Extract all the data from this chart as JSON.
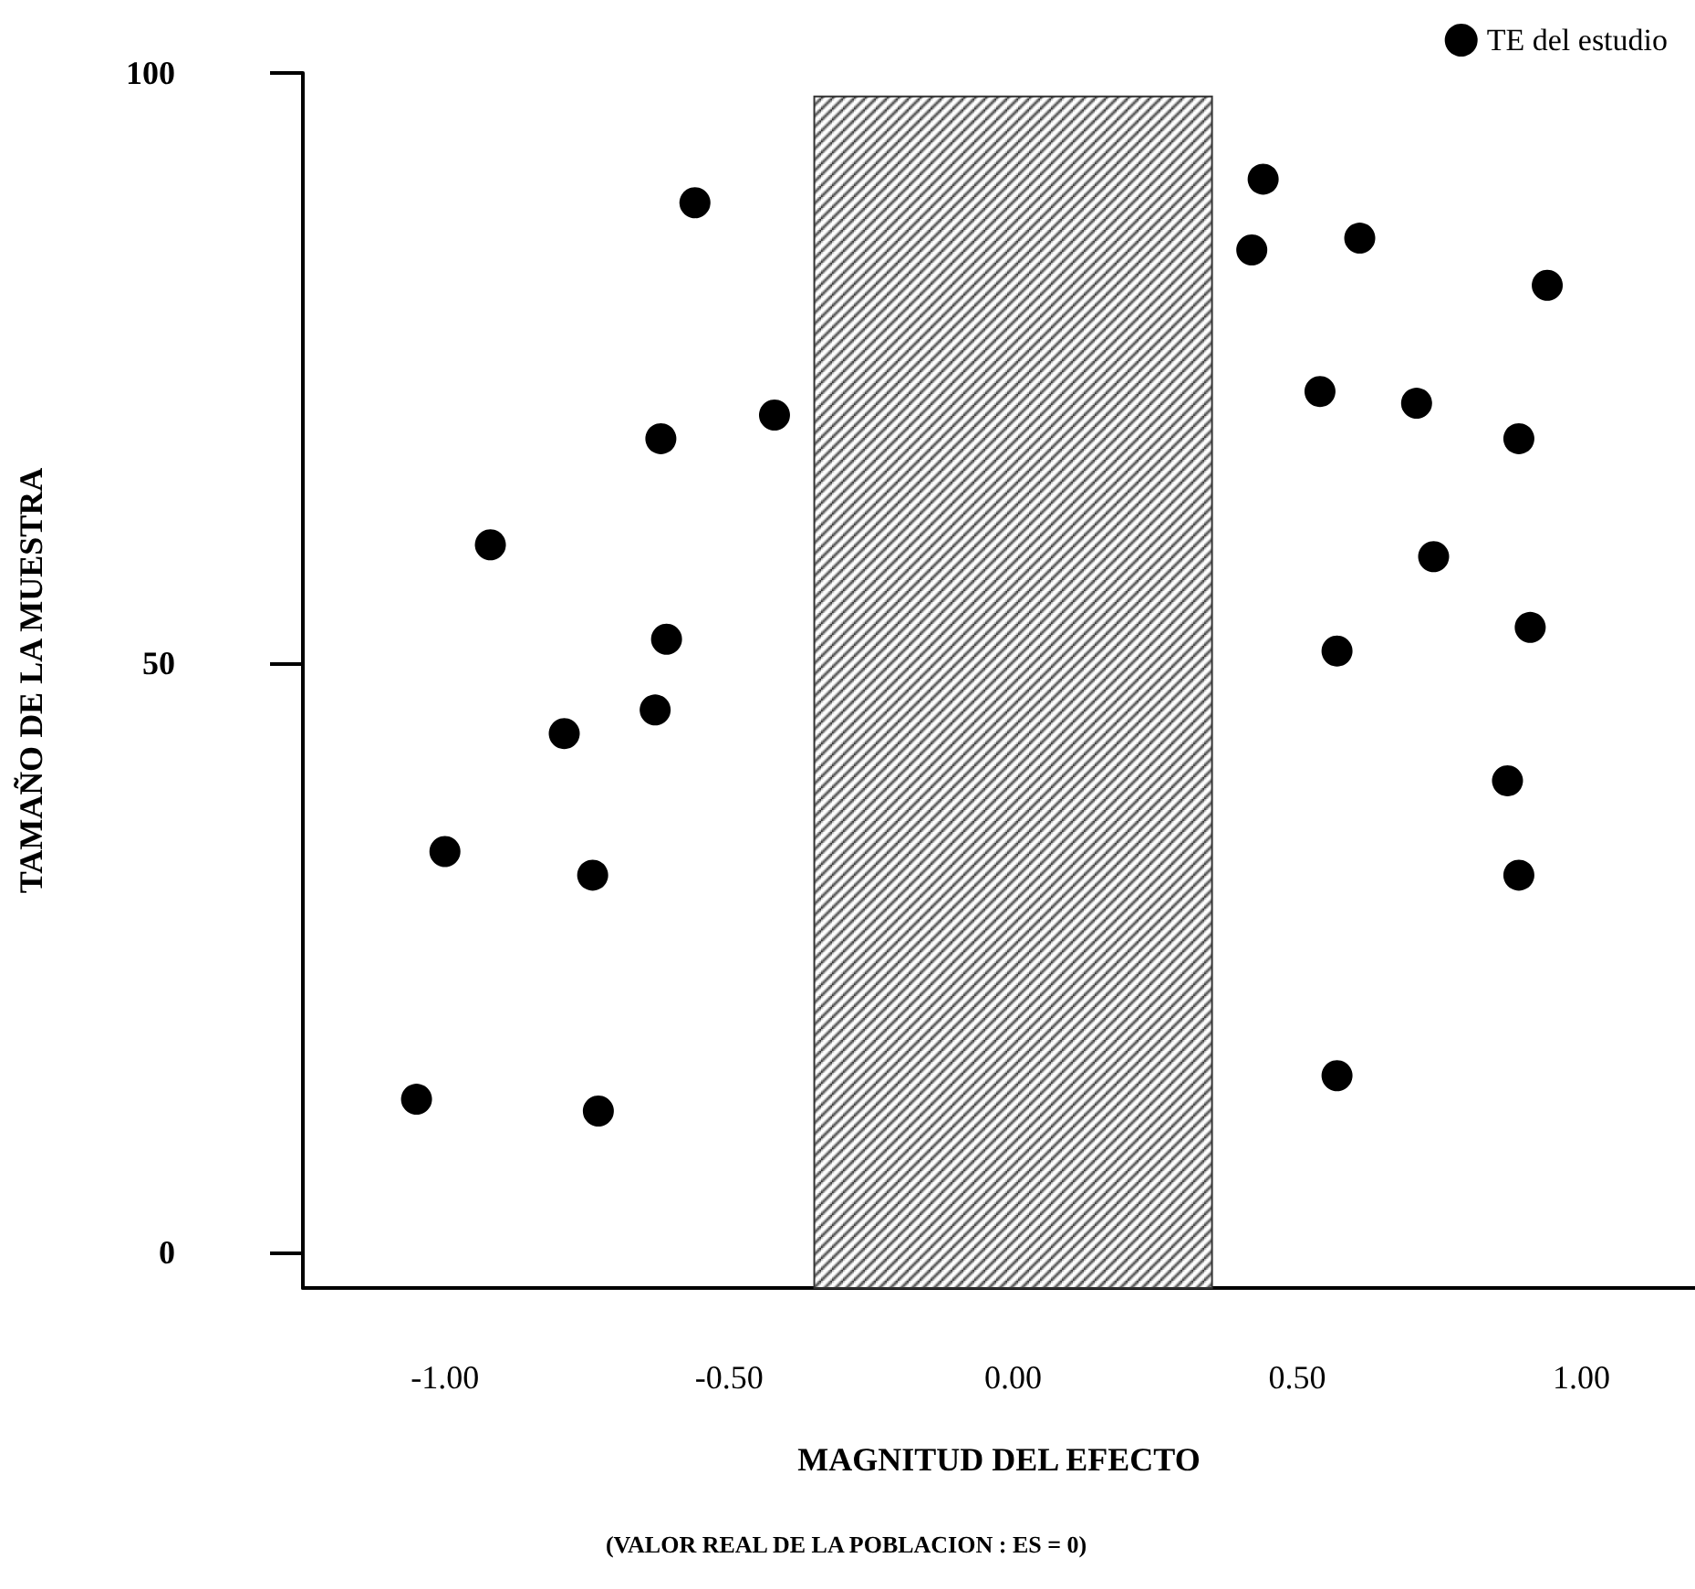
{
  "chart_data": {
    "type": "scatter",
    "xlabel": "MAGNITUD DEL EFECTO",
    "ylabel": "TAMAÑO DE LA MUESTRA",
    "annotations": [
      "(VALOR REAL DE LA POBLACION : ES = 0)"
    ],
    "series": [
      {
        "name": "TE del estudio",
        "color": "#000000",
        "x": [
          -0.56,
          -0.42,
          -0.62,
          -0.92,
          -0.61,
          -0.63,
          -0.79,
          -1.0,
          -0.74,
          -1.05,
          -0.73,
          0.44,
          0.42,
          0.61,
          0.94,
          0.54,
          0.71,
          0.89,
          0.74,
          0.91,
          0.57,
          0.87,
          0.89,
          0.57
        ],
        "values": [
          89,
          71,
          69,
          60,
          52,
          46,
          44,
          34,
          32,
          13,
          12,
          91,
          85,
          86,
          82,
          73,
          72,
          69,
          59,
          53,
          51,
          40,
          32,
          15
        ]
      }
    ],
    "xlim": [
      -1.25,
      1.2
    ],
    "xticks": [
      {
        "value": -1,
        "label": "-1.00"
      },
      {
        "value": -0.5,
        "label": "-0.50"
      },
      {
        "value": 0,
        "label": "0.00"
      },
      {
        "value": 0.5,
        "label": "0.50"
      },
      {
        "value": 1,
        "label": "1.00"
      }
    ],
    "ylim": [
      -3,
      100
    ],
    "yticks": [
      0,
      50,
      100
    ],
    "bands": [
      {
        "axis": "x",
        "from": -0.35,
        "to": 0.35,
        "color": "#333333"
      }
    ],
    "marker": "circle",
    "legend": "top right"
  }
}
